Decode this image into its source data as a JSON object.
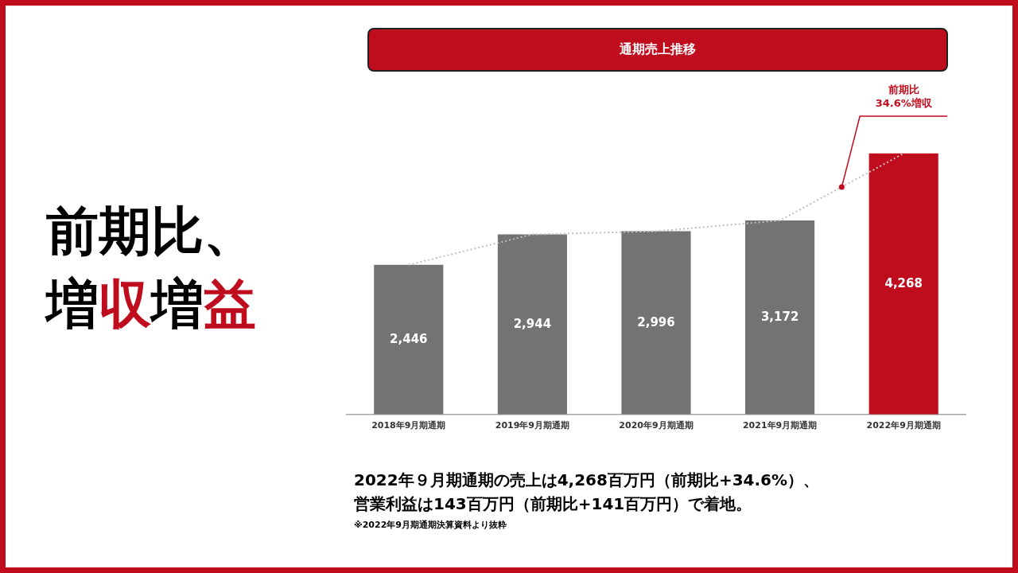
{
  "chart_data": {
    "type": "bar",
    "title": "通期売上推移",
    "categories": [
      "2018年9月期通期",
      "2019年9月期通期",
      "2020年9月期通期",
      "2021年9月期通期",
      "2022年9月期通期"
    ],
    "series": [
      {
        "colors": [
          "#737373",
          "#737373",
          "#737373",
          "#737373",
          "#c00d1e"
        ],
        "values": [
          2446,
          2944,
          2996,
          3172,
          4268
        ],
        "value_labels": [
          "2,446",
          "2,944",
          "2,996",
          "3,172",
          "4,268"
        ]
      },
      {
        "type": "line",
        "color": "#bfbfbf",
        "line_style": "dotted",
        "marker": "none",
        "values": [
          2446,
          2944,
          2996,
          3172,
          4268
        ]
      }
    ],
    "grid": false,
    "legend": false,
    "annotations": [
      "前期比、増収増益",
      "前期比\n34.6%増収",
      "2022年９月期通期の売上は4,268百万円（前期比+34.6%）、営業利益は143百万円（前期比+141百万円）で着地。",
      "※2022年9月期通期決算資料より抜粋"
    ]
  }
}
